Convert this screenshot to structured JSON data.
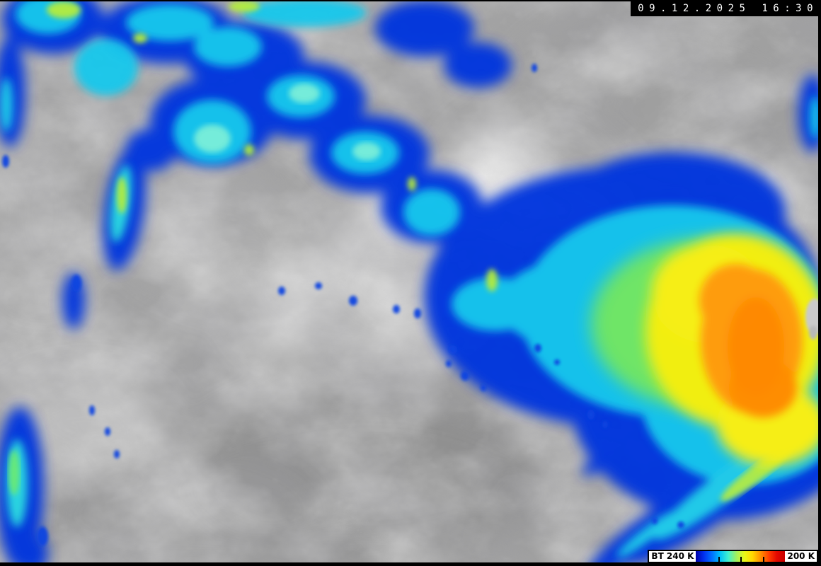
{
  "image": {
    "timestamp": "09.12.2025 16:30"
  },
  "overlay_colors": {
    "timestamp_background": "#000000",
    "timestamp_text": "#ffffff",
    "border": "#000000",
    "legend_label_background": "#ffffff",
    "legend_label_text": "#000000"
  },
  "colorbar": {
    "start_label": "BT 240 K",
    "end_label": "200 K",
    "tick_count": 3,
    "gradient_stops": [
      "#0000a8",
      "#0030f0",
      "#0070ff",
      "#00c0f8",
      "#40f0d0",
      "#a0f060",
      "#e8f818",
      "#ffd800",
      "#ff9000",
      "#ff4000",
      "#e40800",
      "#c80000"
    ]
  }
}
